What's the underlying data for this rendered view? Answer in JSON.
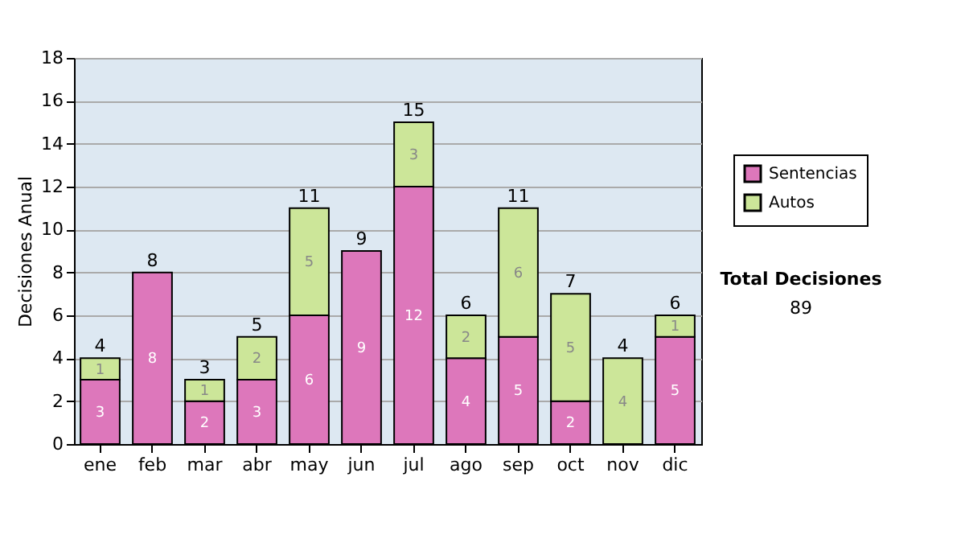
{
  "chart_data": {
    "type": "bar",
    "stacked": true,
    "ylabel": "Decisiones Anual",
    "categories": [
      "ene",
      "feb",
      "mar",
      "abr",
      "may",
      "jun",
      "jul",
      "ago",
      "sep",
      "oct",
      "nov",
      "dic"
    ],
    "series": [
      {
        "name": "Sentencias",
        "color": "#dd77bb",
        "values": [
          3,
          8,
          2,
          3,
          6,
          9,
          12,
          4,
          5,
          2,
          0,
          5
        ],
        "value_labels": [
          "3",
          "8",
          "2",
          "3",
          "6",
          "9",
          "12",
          "4",
          "5",
          "2",
          null,
          "5"
        ]
      },
      {
        "name": "Autos",
        "color": "#cce699",
        "values": [
          1,
          0,
          1,
          2,
          5,
          0,
          3,
          2,
          6,
          5,
          4,
          1
        ],
        "value_labels": [
          "1",
          null,
          "1",
          "2",
          "5",
          null,
          "3",
          "2",
          "6",
          "5",
          "4",
          "1"
        ]
      }
    ],
    "totals": [
      "4",
      "8",
      "3",
      "5",
      "11",
      "9",
      "15",
      "6",
      "11",
      "7",
      "4",
      "6"
    ],
    "ylim": [
      0,
      18
    ],
    "yticks": [
      0,
      2,
      4,
      6,
      8,
      10,
      12,
      14,
      16,
      18
    ],
    "grid": "y",
    "legend": "right",
    "annotations": [
      "Total Decisiones",
      "89"
    ]
  }
}
